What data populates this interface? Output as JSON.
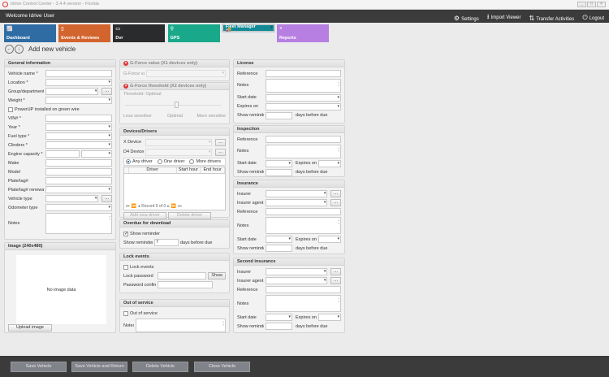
{
  "window": {
    "title": "Idrive Control Center - 3.4.4 version - Florida",
    "minimize": "_",
    "maximize": "□",
    "close": "×"
  },
  "header": {
    "welcome": "Welcome Idrive User",
    "settings": "Settings",
    "import_viewer": "Import Viewer",
    "transfer": "Transfer Activities",
    "logout": "Logout"
  },
  "tiles": [
    {
      "label": "Dashboard",
      "color": "#2f6ca4",
      "icon": "📈"
    },
    {
      "label": "Events & Reviews",
      "color": "#d2642e",
      "icon": "▯"
    },
    {
      "label": "Dvr",
      "color": "#2a2b2d",
      "icon": "▭"
    },
    {
      "label": "GPS",
      "color": "#19a98a",
      "icon": "⚲"
    },
    {
      "label": "Fleet Manager",
      "color": "#118a97",
      "icon": "🚚",
      "selected": true
    },
    {
      "label": "Reports",
      "color": "#b67fe1",
      "icon": "◕"
    }
  ],
  "page": {
    "title": "Add new vehicle",
    "back": "←",
    "down": "↓"
  },
  "general": {
    "title": "General information",
    "rows": [
      {
        "label": "Vehicle name *",
        "type": "text"
      },
      {
        "label": "Location *",
        "type": "select"
      },
      {
        "label": "Group/department",
        "type": "select_btn",
        "btn": "..."
      },
      {
        "label": "Weight *",
        "type": "select"
      },
      {
        "label": "PowerUP installed on green wire",
        "type": "checkbox"
      },
      {
        "label": "VIN# *",
        "type": "text"
      },
      {
        "label": "Year *",
        "type": "select"
      },
      {
        "label": "Fuel type *",
        "type": "select"
      },
      {
        "label": "Clinders *",
        "type": "select"
      },
      {
        "label": "Engine capacity *",
        "type": "engine"
      },
      {
        "label": "Make",
        "type": "text"
      },
      {
        "label": "Model",
        "type": "text"
      },
      {
        "label": "Plate/tag#",
        "type": "text"
      },
      {
        "label": "Plate/tag# renewal",
        "type": "select"
      },
      {
        "label": "Vehicle type",
        "type": "select_btn",
        "btn": "..."
      },
      {
        "label": "Odometer type",
        "type": "select"
      },
      {
        "label": "Notes",
        "type": "textarea",
        "rows": 2.5
      }
    ]
  },
  "image": {
    "title": "Image (240x480)",
    "placeholder": "No image data",
    "upload": "Upload image"
  },
  "gforce_value": {
    "title": "G-Force value (X1 devices only)",
    "label": "G-Force value"
  },
  "gforce_threshold": {
    "title": "G-Force threshold (X2 devices only)",
    "label": "Threshold: Optimal",
    "less": "Less sensitive",
    "optimal": "Optimal",
    "more": "More sensitive",
    "level": 0.5
  },
  "devices": {
    "title": "Devices/Drivers",
    "x_device": "X Device",
    "d4_device": "D4 Device",
    "btn": "...",
    "radios": [
      {
        "label": "Any driver",
        "checked": true
      },
      {
        "label": "One driver",
        "checked": false
      },
      {
        "label": "More drivers",
        "checked": false
      }
    ],
    "columns": [
      "Driver",
      "Start hour",
      "End hour"
    ],
    "record": "Record 0 of 0",
    "add": "Add new driver",
    "delete": "Delete driver"
  },
  "overdue": {
    "title": "Overdue for download",
    "checkbox": "Show reminder",
    "checked": true,
    "reminder_label": "Show reminder",
    "reminder_value": "7",
    "suffix": "days before due"
  },
  "lock": {
    "title": "Lock events",
    "checkbox": "Lock events",
    "password": "Lock password",
    "show": "Show",
    "confirm": "Password confirm"
  },
  "out_of_service": {
    "title": "Out of service",
    "checkbox": "Out of service",
    "notes": "Notes"
  },
  "license": {
    "title": "License",
    "rows": [
      {
        "label": "Reference",
        "type": "text"
      },
      {
        "label": "Notes",
        "type": "textarea",
        "rows": 1.7
      },
      {
        "label": "Start date",
        "type": "select"
      },
      {
        "label": "Expires on",
        "type": "select"
      },
      {
        "label": "Show reminder",
        "type": "reminder",
        "suffix": "days before due"
      }
    ]
  },
  "inspection": {
    "title": "Inspection",
    "rows": [
      {
        "label": "Reference",
        "type": "text"
      },
      {
        "label": "Notes",
        "type": "textarea",
        "rows": 1.7
      },
      {
        "label": "Start date",
        "type": "dates",
        "expires": "Expires on"
      },
      {
        "label": "Show reminder",
        "type": "reminder",
        "suffix": "days before due"
      }
    ]
  },
  "insurance": {
    "title": "Insurance",
    "rows": [
      {
        "label": "Insurer",
        "type": "select_btn",
        "btn": "..."
      },
      {
        "label": "Insurer agent",
        "type": "select_btn",
        "btn": "..."
      },
      {
        "label": "Reference",
        "type": "text"
      },
      {
        "label": "Notes",
        "type": "textarea",
        "rows": 2.1
      },
      {
        "label": "Start date",
        "type": "dates",
        "expires": "Expires on"
      },
      {
        "label": "Show reminder",
        "type": "reminder",
        "suffix": "days before due"
      }
    ]
  },
  "second_insurance": {
    "title": "Second insurance",
    "rows": [
      {
        "label": "Insurer",
        "type": "select_btn",
        "btn": "..."
      },
      {
        "label": "Insurer agent",
        "type": "select_btn",
        "btn": "..."
      },
      {
        "label": "Reference",
        "type": "text"
      },
      {
        "label": "Notes",
        "type": "textarea",
        "rows": 2.1
      },
      {
        "label": "Start date",
        "type": "dates",
        "expires": "Expires on"
      },
      {
        "label": "Show reminder",
        "type": "reminder",
        "suffix": "days before due"
      }
    ]
  },
  "footer": {
    "save": "Save Vehicle",
    "save_return": "Save Vehicle and Return",
    "delete": "Delete Vehicle",
    "close": "Close Vehicle"
  }
}
